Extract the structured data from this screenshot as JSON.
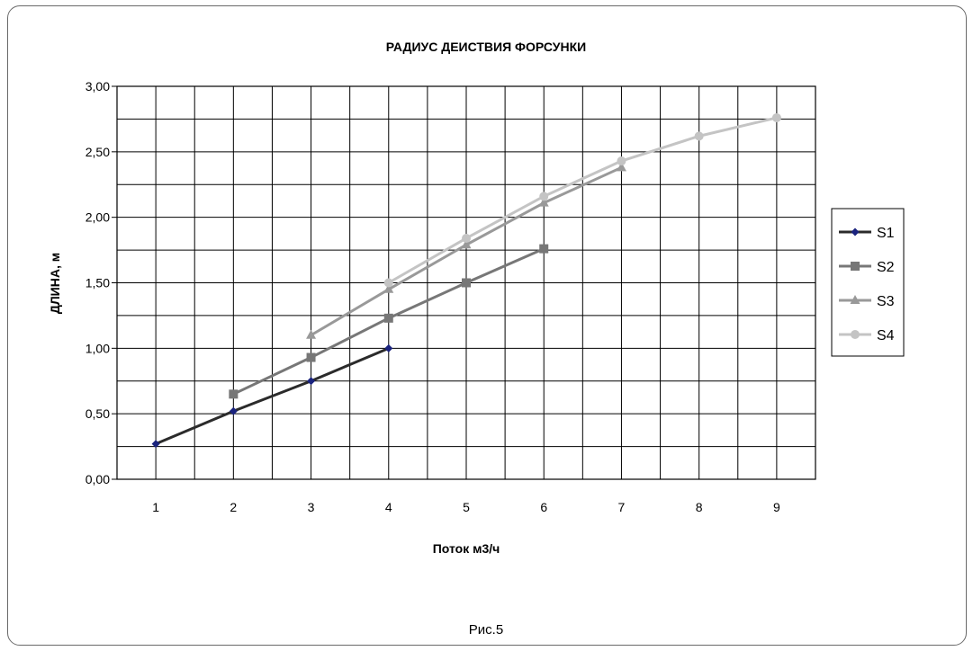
{
  "chart_data": {
    "type": "line",
    "title": "РАДИУС ДЕИСТВИЯ ФОРСУНКИ",
    "xlabel": "Поток  м3/ч",
    "ylabel": "ДЛИНА,  м",
    "caption": "Рис.5",
    "x_ticks": [
      "1",
      "2",
      "3",
      "4",
      "5",
      "6",
      "7",
      "8",
      "9"
    ],
    "y_ticks": [
      "0,00",
      "0,50",
      "1,00",
      "1,50",
      "2,00",
      "2,50",
      "3,00"
    ],
    "xlim": [
      0.5,
      9.5
    ],
    "ylim": [
      0,
      3
    ],
    "grid": true,
    "legend_position": "right",
    "series": [
      {
        "name": "S1",
        "marker": "diamond",
        "color": "#2b2b2b",
        "marker_color": "#1a237e",
        "points": [
          [
            1,
            0.27
          ],
          [
            2,
            0.52
          ],
          [
            3,
            0.75
          ],
          [
            4,
            1.0
          ]
        ]
      },
      {
        "name": "S2",
        "marker": "square",
        "color": "#777777",
        "points": [
          [
            2,
            0.65
          ],
          [
            3,
            0.93
          ],
          [
            4,
            1.23
          ],
          [
            5,
            1.5
          ],
          [
            6,
            1.76
          ]
        ]
      },
      {
        "name": "S3",
        "marker": "triangle",
        "color": "#999999",
        "points": [
          [
            3,
            1.1
          ],
          [
            4,
            1.45
          ],
          [
            5,
            1.79
          ],
          [
            6,
            2.11
          ],
          [
            7,
            2.38
          ]
        ]
      },
      {
        "name": "S4",
        "marker": "circle",
        "color": "#c4c4c4",
        "points": [
          [
            4,
            1.5
          ],
          [
            5,
            1.84
          ],
          [
            6,
            2.16
          ],
          [
            7,
            2.43
          ],
          [
            8,
            2.62
          ],
          [
            9,
            2.76
          ]
        ]
      }
    ]
  }
}
